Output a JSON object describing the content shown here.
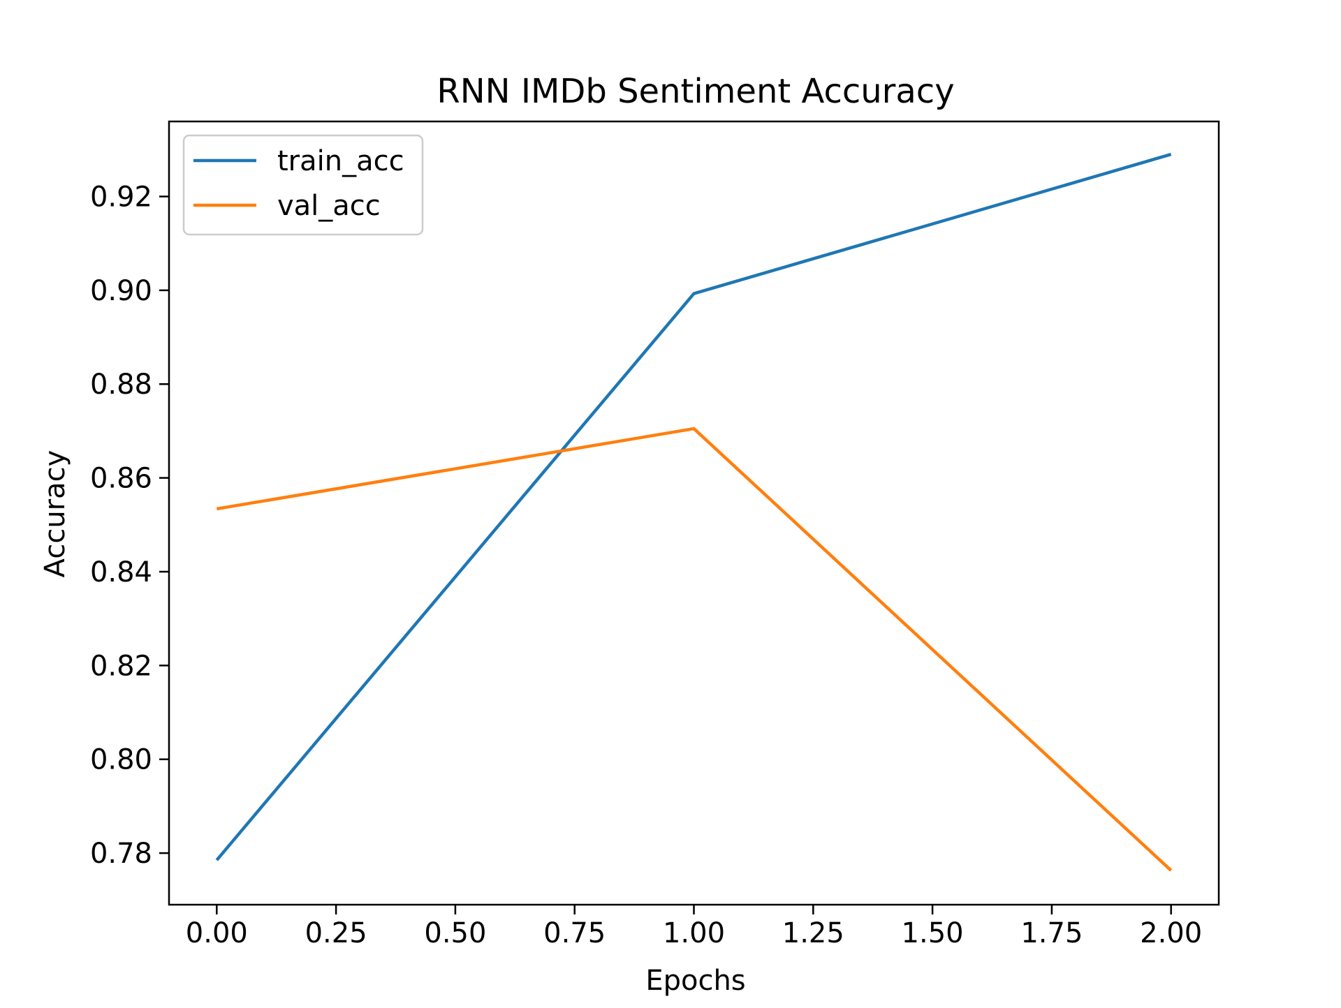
{
  "chart_data": {
    "type": "line",
    "title": "RNN IMDb Sentiment Accuracy",
    "xlabel": "Epochs",
    "ylabel": "Accuracy",
    "x": [
      0,
      1,
      2
    ],
    "xlim": [
      -0.1,
      2.1
    ],
    "ylim": [
      0.769,
      0.936
    ],
    "xticks": [
      0.0,
      0.25,
      0.5,
      0.75,
      1.0,
      1.25,
      1.5,
      1.75,
      2.0
    ],
    "xtick_labels": [
      "0.00",
      "0.25",
      "0.50",
      "0.75",
      "1.00",
      "1.25",
      "1.50",
      "1.75",
      "2.00"
    ],
    "yticks": [
      0.78,
      0.8,
      0.82,
      0.84,
      0.86,
      0.88,
      0.9,
      0.92
    ],
    "ytick_labels": [
      "0.78",
      "0.80",
      "0.82",
      "0.84",
      "0.86",
      "0.88",
      "0.90",
      "0.92"
    ],
    "grid": false,
    "legend_position": "upper-left",
    "series": [
      {
        "name": "train_acc",
        "color": "#1f77b4",
        "values": [
          0.7785,
          0.8993,
          0.929
        ]
      },
      {
        "name": "val_acc",
        "color": "#ff7f0e",
        "values": [
          0.8534,
          0.8705,
          0.7763
        ]
      }
    ]
  }
}
